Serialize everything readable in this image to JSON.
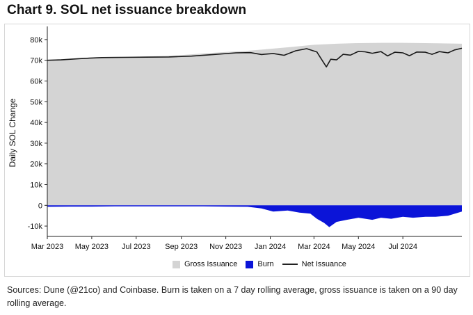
{
  "page": {
    "title": "Chart 9. SOL net issuance breakdown",
    "source": "Sources: Dune (@21co) and Coinbase. Burn is taken on a 7 day rolling average, gross issuance is taken on a 90 day rolling average."
  },
  "chart_data": {
    "type": "area",
    "ylabel": "Daily SOL Change",
    "ylim": [
      -15000,
      85000
    ],
    "yticks": [
      80000,
      70000,
      60000,
      50000,
      40000,
      30000,
      20000,
      10000,
      0,
      -10000
    ],
    "ytick_labels": [
      "80k",
      "70k",
      "60k",
      "50k",
      "40k",
      "30k",
      "20k",
      "10k",
      "0",
      "-10k"
    ],
    "xlim": [
      "2023-03-01",
      "2024-09-20"
    ],
    "xticks": [
      "2023-03-01",
      "2023-05-01",
      "2023-07-01",
      "2023-09-01",
      "2023-11-01",
      "2024-01-01",
      "2024-03-01",
      "2024-05-01",
      "2024-07-01"
    ],
    "xtick_labels": [
      "Mar 2023",
      "May 2023",
      "Jul 2023",
      "Sep 2023",
      "Nov 2023",
      "Jan 2024",
      "Mar 2024",
      "May 2024",
      "Jul 2024"
    ],
    "grid": false,
    "legend_position": "bottom",
    "series": [
      {
        "name": "Gross Issuance",
        "kind": "area",
        "color": "#d4d4d4",
        "x": [
          "2023-03-01",
          "2023-04-01",
          "2023-05-01",
          "2023-06-01",
          "2023-07-01",
          "2023-08-01",
          "2023-09-01",
          "2023-10-01",
          "2023-11-01",
          "2023-12-01",
          "2024-01-01",
          "2024-02-01",
          "2024-03-01",
          "2024-04-01",
          "2024-05-01",
          "2024-06-01",
          "2024-07-01",
          "2024-08-01",
          "2024-09-01",
          "2024-09-20"
        ],
        "values": [
          70200,
          70800,
          71400,
          71700,
          71800,
          72000,
          72500,
          73300,
          74000,
          74600,
          75500,
          76500,
          77500,
          78000,
          78300,
          78400,
          78400,
          78300,
          78100,
          78000
        ]
      },
      {
        "name": "Burn",
        "kind": "area",
        "color": "#0b14d8",
        "x": [
          "2023-03-01",
          "2023-04-01",
          "2023-05-01",
          "2023-06-01",
          "2023-07-01",
          "2023-08-01",
          "2023-09-01",
          "2023-10-01",
          "2023-11-01",
          "2023-12-01",
          "2023-12-20",
          "2024-01-05",
          "2024-01-25",
          "2024-02-10",
          "2024-02-25",
          "2024-03-05",
          "2024-03-15",
          "2024-03-22",
          "2024-04-01",
          "2024-04-15",
          "2024-05-01",
          "2024-05-20",
          "2024-06-01",
          "2024-06-15",
          "2024-07-01",
          "2024-07-15",
          "2024-08-01",
          "2024-08-15",
          "2024-09-01",
          "2024-09-20"
        ],
        "values": [
          -700,
          -600,
          -600,
          -500,
          -500,
          -500,
          -500,
          -500,
          -600,
          -700,
          -1500,
          -3000,
          -2500,
          -3500,
          -4000,
          -6500,
          -8500,
          -10500,
          -8000,
          -7000,
          -6000,
          -7000,
          -6000,
          -6500,
          -5500,
          -6000,
          -5500,
          -5500,
          -5000,
          -3000
        ]
      },
      {
        "name": "Net Issuance",
        "kind": "line",
        "color": "#1a1a1a",
        "x": [
          "2023-03-01",
          "2023-03-20",
          "2023-04-15",
          "2023-05-15",
          "2023-06-15",
          "2023-07-15",
          "2023-08-15",
          "2023-09-15",
          "2023-10-15",
          "2023-11-15",
          "2023-12-05",
          "2023-12-20",
          "2024-01-05",
          "2024-01-20",
          "2024-02-05",
          "2024-02-20",
          "2024-03-05",
          "2024-03-10",
          "2024-03-18",
          "2024-03-24",
          "2024-04-01",
          "2024-04-10",
          "2024-04-20",
          "2024-05-01",
          "2024-05-10",
          "2024-05-20",
          "2024-06-01",
          "2024-06-10",
          "2024-06-20",
          "2024-07-01",
          "2024-07-10",
          "2024-07-20",
          "2024-08-01",
          "2024-08-10",
          "2024-08-20",
          "2024-09-01",
          "2024-09-10",
          "2024-09-20"
        ],
        "values": [
          70000,
          70200,
          70800,
          71300,
          71400,
          71500,
          71600,
          72000,
          72800,
          73600,
          73700,
          72800,
          73300,
          72400,
          74600,
          75600,
          74000,
          71200,
          66800,
          70500,
          70200,
          72900,
          72500,
          74300,
          74100,
          73400,
          74200,
          72100,
          73900,
          73600,
          72200,
          74000,
          73900,
          72900,
          74200,
          73600,
          75000,
          75800
        ]
      }
    ]
  }
}
